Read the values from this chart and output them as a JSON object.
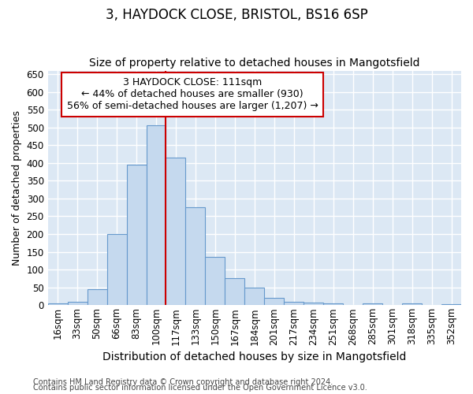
{
  "title": "3, HAYDOCK CLOSE, BRISTOL, BS16 6SP",
  "subtitle": "Size of property relative to detached houses in Mangotsfield",
  "xlabel": "Distribution of detached houses by size in Mangotsfield",
  "ylabel": "Number of detached properties",
  "categories": [
    "16sqm",
    "33sqm",
    "50sqm",
    "66sqm",
    "83sqm",
    "100sqm",
    "117sqm",
    "133sqm",
    "150sqm",
    "167sqm",
    "184sqm",
    "201sqm",
    "217sqm",
    "234sqm",
    "251sqm",
    "268sqm",
    "285sqm",
    "301sqm",
    "318sqm",
    "335sqm",
    "352sqm"
  ],
  "values": [
    5,
    10,
    45,
    200,
    395,
    505,
    415,
    275,
    135,
    75,
    50,
    20,
    10,
    8,
    5,
    0,
    5,
    0,
    5,
    0,
    2
  ],
  "bar_color": "#c5d9ee",
  "bar_edge_color": "#6699cc",
  "vline_x": 5.5,
  "vline_color": "#cc0000",
  "annotation_line1": "3 HAYDOCK CLOSE: 111sqm",
  "annotation_line2": "← 44% of detached houses are smaller (930)",
  "annotation_line3": "56% of semi-detached houses are larger (1,207) →",
  "annotation_box_color": "#ffffff",
  "annotation_box_edge": "#cc0000",
  "ylim": [
    0,
    660
  ],
  "yticks": [
    0,
    50,
    100,
    150,
    200,
    250,
    300,
    350,
    400,
    450,
    500,
    550,
    600,
    650
  ],
  "bg_color": "#dce8f4",
  "grid_color": "#ffffff",
  "footer_line1": "Contains HM Land Registry data © Crown copyright and database right 2024.",
  "footer_line2": "Contains public sector information licensed under the Open Government Licence v3.0.",
  "title_fontsize": 12,
  "subtitle_fontsize": 10,
  "ylabel_fontsize": 9,
  "xlabel_fontsize": 10,
  "tick_fontsize": 8.5,
  "annot_fontsize": 9,
  "footer_fontsize": 7
}
